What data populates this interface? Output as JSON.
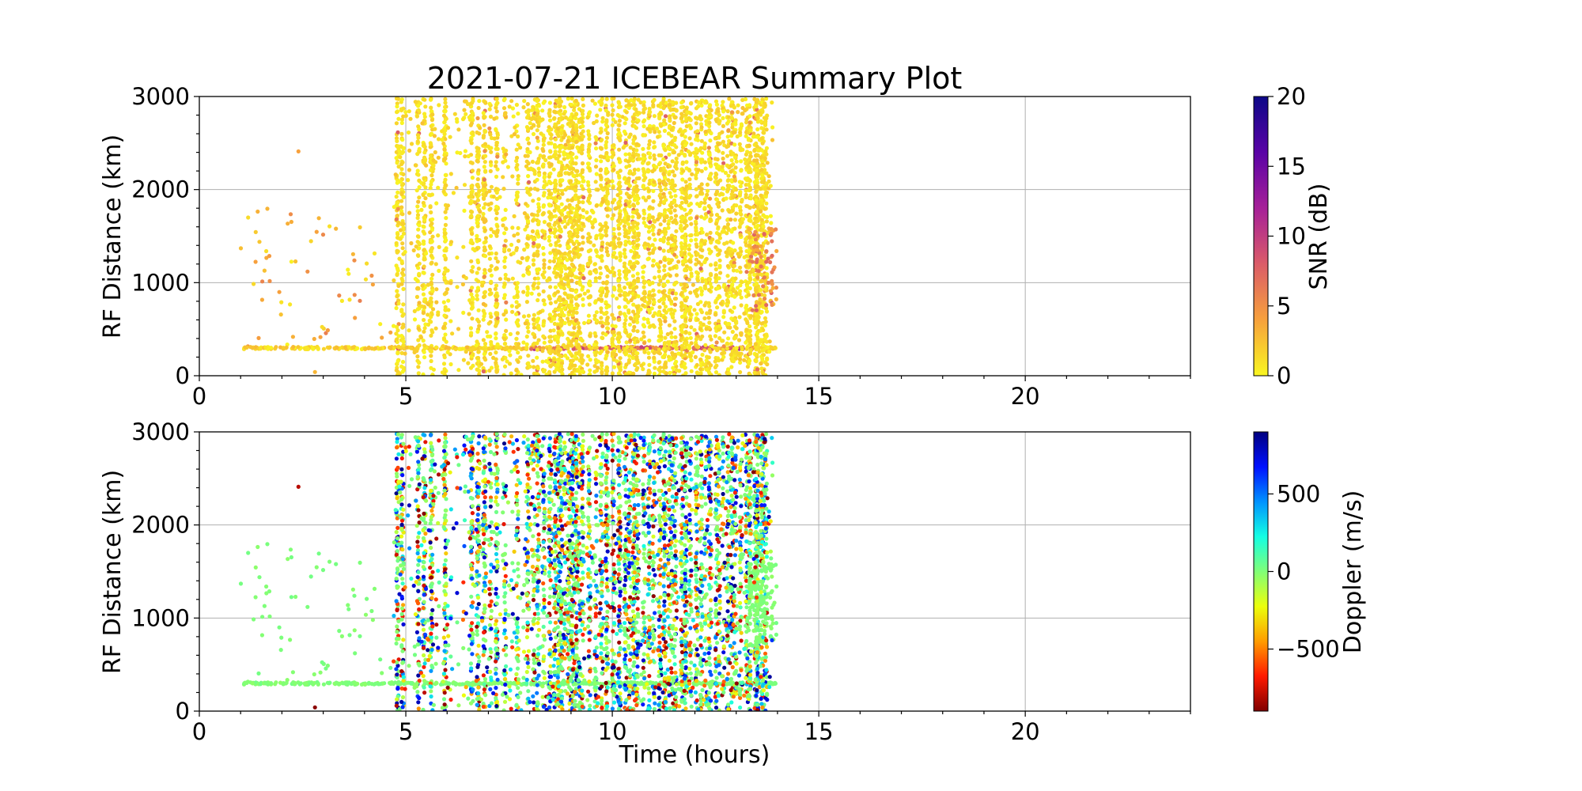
{
  "figure": {
    "title": "2021-07-21 ICEBEAR Summary Plot",
    "xlabel": "Time (hours)"
  },
  "chart_data": [
    {
      "type": "scatter",
      "id": "snr-panel",
      "ylabel": "RF Distance (km)",
      "xlim": [
        0,
        24
      ],
      "ylim": [
        0,
        3000
      ],
      "x_ticks": [
        0,
        5,
        10,
        15,
        20
      ],
      "x_tick_labels": [
        "0",
        "5",
        "10",
        "15",
        "20"
      ],
      "y_ticks": [
        0,
        1000,
        2000,
        3000
      ],
      "y_tick_labels": [
        "0",
        "1000",
        "2000",
        "3000"
      ],
      "grid": true,
      "color_variable": "SNR",
      "colorbar": {
        "label": "SNR (dB)",
        "colormap": "plasma_r",
        "range": [
          0,
          20
        ],
        "ticks": [
          0,
          5,
          10,
          15,
          20
        ],
        "tick_labels": [
          "0",
          "5",
          "10",
          "15",
          "20"
        ],
        "colors": [
          "#f9f621",
          "#f7a13c",
          "#db5c68",
          "#a62098",
          "#5a03a6",
          "#0d0887"
        ]
      },
      "data_summary": {
        "time_range_hours": [
          1.0,
          14.0
        ],
        "distance_range_km": [
          0,
          3000
        ],
        "ground_band_km": 300,
        "dense_time_range_hours": [
          6.6,
          13.8
        ],
        "typical_snr_db": [
          0,
          3
        ]
      }
    },
    {
      "type": "scatter",
      "id": "doppler-panel",
      "ylabel": "RF Distance (km)",
      "xlim": [
        0,
        24
      ],
      "ylim": [
        0,
        3000
      ],
      "x_ticks": [
        0,
        5,
        10,
        15,
        20
      ],
      "x_tick_labels": [
        "0",
        "5",
        "10",
        "15",
        "20"
      ],
      "y_ticks": [
        0,
        1000,
        2000,
        3000
      ],
      "y_tick_labels": [
        "0",
        "1000",
        "2000",
        "3000"
      ],
      "grid": true,
      "color_variable": "Doppler",
      "colorbar": {
        "label": "Doppler (m/s)",
        "colormap": "jet_r",
        "range": [
          -900,
          900
        ],
        "ticks": [
          -500,
          0,
          500
        ],
        "tick_labels": [
          "−500",
          "0",
          "500"
        ],
        "colors": [
          "#800000",
          "#ff1a00",
          "#ff9c00",
          "#ebff0c",
          "#80ff77",
          "#14ffe3",
          "#0092ff",
          "#0010ff",
          "#00007f"
        ]
      },
      "data_summary": {
        "time_range_hours": [
          1.0,
          14.0
        ],
        "distance_range_km": [
          0,
          3000
        ],
        "ground_band_km": 300,
        "ground_band_doppler_ms": 0,
        "dense_time_range_hours": [
          6.6,
          13.8
        ],
        "doppler_range_ms": [
          -900,
          900
        ]
      }
    }
  ]
}
